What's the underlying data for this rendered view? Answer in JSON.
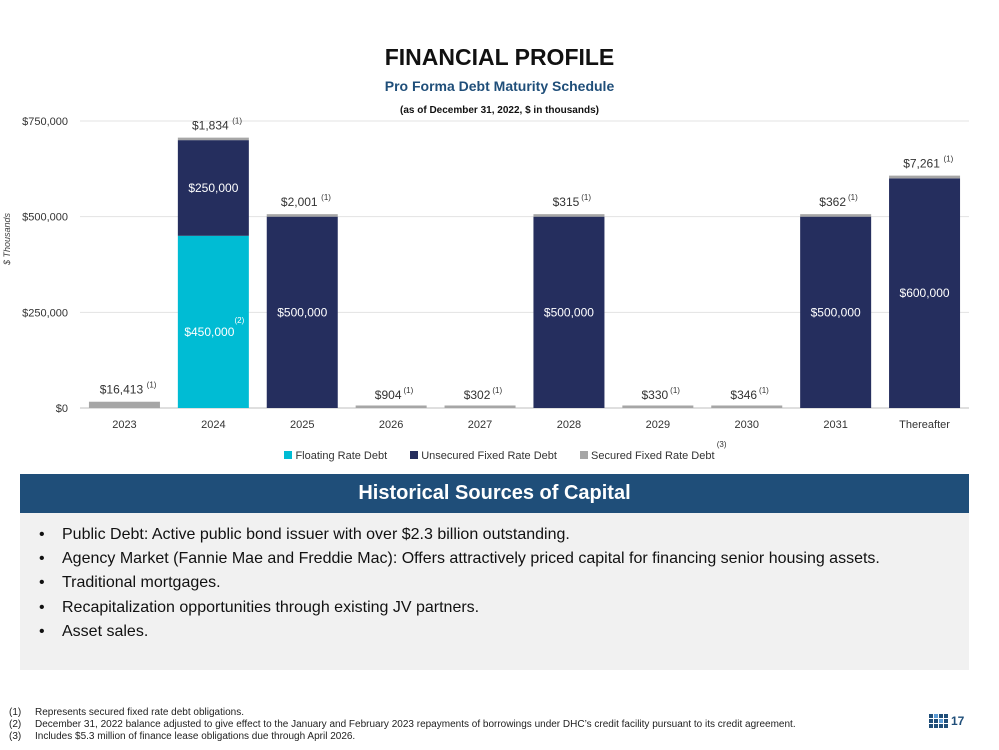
{
  "header": {
    "title": "FINANCIAL PROFILE",
    "subtitle": "Pro Forma Debt Maturity Schedule",
    "note": "(as of December 31, 2022, $ in thousands)"
  },
  "colors": {
    "floating": "#00bcd4",
    "unsecured": "#252e5e",
    "secured": "#a6a6a6",
    "banner": "#1f4e79"
  },
  "chart_data": {
    "type": "bar",
    "stacked": true,
    "title": "Pro Forma Debt Maturity Schedule",
    "ylabel": "$ Thousands",
    "ylim": [
      0,
      750000
    ],
    "yticks": [
      0,
      250000,
      500000,
      750000
    ],
    "ytick_labels": [
      "$0",
      "$250,000",
      "$500,000",
      "$750,000"
    ],
    "categories": [
      "2023",
      "2024",
      "2025",
      "2026",
      "2027",
      "2028",
      "2029",
      "2030",
      "2031",
      "Thereafter"
    ],
    "series": [
      {
        "name": "Floating Rate Debt",
        "color_key": "floating",
        "values": [
          0,
          450000,
          0,
          0,
          0,
          0,
          0,
          0,
          0,
          0
        ],
        "labels": [
          "",
          "$450,000",
          "",
          "",
          "",
          "",
          "",
          "",
          "",
          ""
        ]
      },
      {
        "name": "Unsecured Fixed Rate Debt",
        "color_key": "unsecured",
        "values": [
          0,
          250000,
          500000,
          0,
          0,
          500000,
          0,
          0,
          500000,
          600000
        ],
        "labels": [
          "",
          "$250,000",
          "$500,000",
          "",
          "",
          "$500,000",
          "",
          "",
          "$500,000",
          "$600,000"
        ]
      },
      {
        "name": "Secured Fixed Rate Debt",
        "color_key": "secured",
        "values": [
          16413,
          1834,
          2001,
          904,
          302,
          315,
          330,
          346,
          362,
          7261
        ],
        "labels": [
          "$16,413",
          "$1,834",
          "$2,001",
          "$904",
          "$302",
          "$315",
          "$330",
          "$346",
          "$362",
          "$7,261"
        ]
      }
    ],
    "secured_footnote": "(1)",
    "floating_footnote": "(2)",
    "legend": [
      {
        "name": "Floating Rate Debt",
        "color_key": "floating",
        "footnote": ""
      },
      {
        "name": "Unsecured Fixed Rate Debt",
        "color_key": "unsecured",
        "footnote": ""
      },
      {
        "name": "Secured Fixed Rate Debt",
        "color_key": "secured",
        "footnote": "(3)"
      }
    ],
    "legend_position": "bottom",
    "grid": true
  },
  "capital": {
    "heading": "Historical Sources of Capital",
    "bullets": [
      "Public Debt: Active public bond issuer with over $2.3 billion outstanding.",
      "Agency Market (Fannie Mae and Freddie Mac): Offers attractively priced capital for financing senior housing assets.",
      "Traditional mortgages.",
      "Recapitalization opportunities through existing JV partners.",
      "Asset sales."
    ]
  },
  "footnotes": [
    {
      "num": "(1)",
      "text": "Represents secured fixed rate debt obligations."
    },
    {
      "num": "(2)",
      "text": "December 31, 2022 balance adjusted to give effect to the January and February 2023 repayments of borrowings under DHC’s credit facility pursuant to its credit agreement."
    },
    {
      "num": "(3)",
      "text": "Includes $5.3 million of finance lease obligations due through April 2026."
    }
  ],
  "page_number": "17"
}
